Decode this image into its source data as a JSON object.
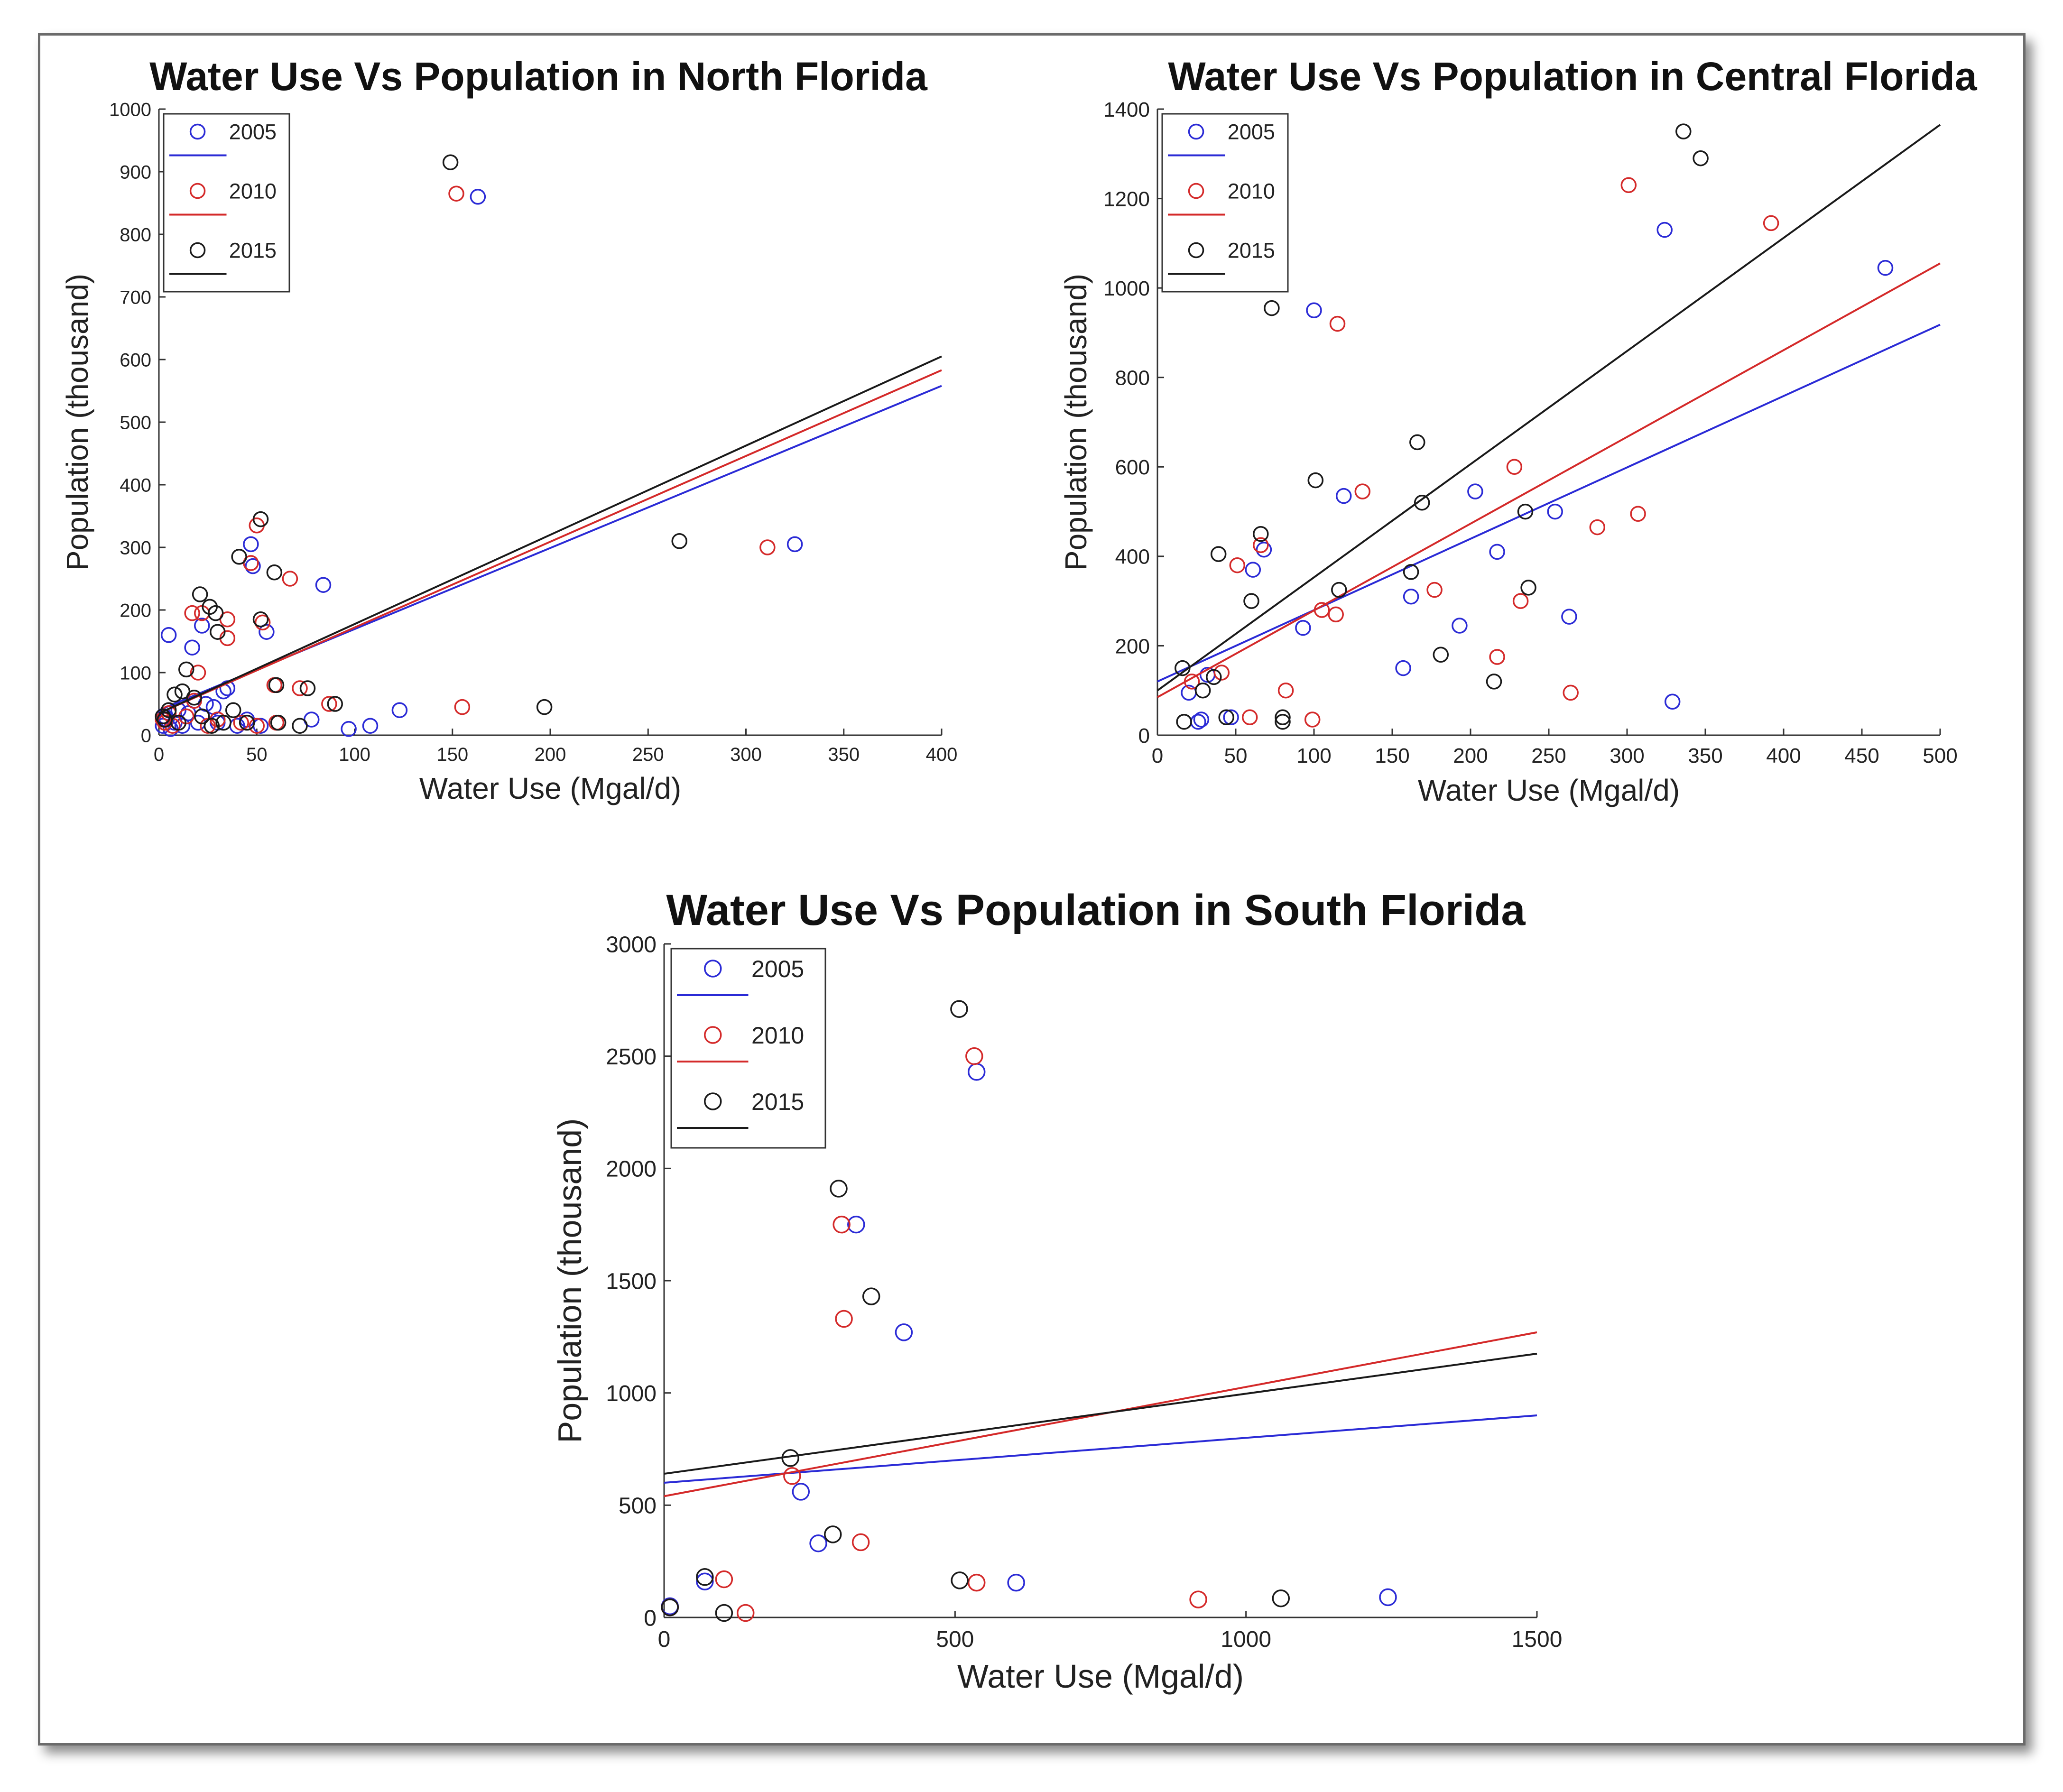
{
  "colors": {
    "2005": "#2b2bd6",
    "2010": "#d42a2a",
    "2015": "#1a1a1a"
  },
  "chart_data": [
    {
      "type": "scatter",
      "title": "Water Use Vs Population in North Florida",
      "xlabel": "Water Use (Mgal/d)",
      "ylabel": "Population (thousand)",
      "xlim": [
        0,
        400
      ],
      "ylim": [
        0,
        1000
      ],
      "xticks": [
        0,
        50,
        100,
        150,
        200,
        250,
        300,
        350,
        400
      ],
      "yticks": [
        0,
        100,
        200,
        300,
        400,
        500,
        600,
        700,
        800,
        900,
        1000
      ],
      "legend": [
        "2005",
        "2010",
        "2015"
      ],
      "series": [
        {
          "name": "2005",
          "points": [
            [
              5,
              160
            ],
            [
              17,
              140
            ],
            [
              22,
              175
            ],
            [
              47,
              305
            ],
            [
              48,
              270
            ],
            [
              55,
              165
            ],
            [
              84,
              240
            ],
            [
              163,
              860
            ],
            [
              325,
              305
            ],
            [
              123,
              40
            ],
            [
              108,
              15
            ],
            [
              97,
              10
            ],
            [
              78,
              25
            ],
            [
              35,
              75
            ],
            [
              33,
              70
            ],
            [
              28,
              45
            ],
            [
              24,
              50
            ],
            [
              20,
              20
            ],
            [
              15,
              35
            ],
            [
              12,
              15
            ],
            [
              10,
              40
            ],
            [
              8,
              20
            ],
            [
              6,
              10
            ],
            [
              4,
              25
            ],
            [
              3,
              30
            ],
            [
              2,
              15
            ],
            [
              30,
              20
            ],
            [
              40,
              15
            ],
            [
              45,
              25
            ],
            [
              52,
              15
            ]
          ],
          "fit": [
            [
              0,
              40
            ],
            [
              400,
              558
            ]
          ]
        },
        {
          "name": "2010",
          "points": [
            [
              17,
              195
            ],
            [
              22,
              195
            ],
            [
              20,
              100
            ],
            [
              35,
              185
            ],
            [
              35,
              155
            ],
            [
              47,
              275
            ],
            [
              50,
              335
            ],
            [
              53,
              180
            ],
            [
              59,
              80
            ],
            [
              67,
              250
            ],
            [
              72,
              75
            ],
            [
              87,
              50
            ],
            [
              152,
              865
            ],
            [
              155,
              45
            ],
            [
              311,
              300
            ],
            [
              60,
              20
            ],
            [
              50,
              15
            ],
            [
              42,
              20
            ],
            [
              30,
              25
            ],
            [
              25,
              15
            ],
            [
              18,
              55
            ],
            [
              14,
              30
            ],
            [
              10,
              20
            ],
            [
              7,
              15
            ],
            [
              5,
              35
            ],
            [
              3,
              20
            ],
            [
              2,
              25
            ]
          ],
          "fit": [
            [
              0,
              35
            ],
            [
              400,
              583
            ]
          ]
        },
        {
          "name": "2015",
          "points": [
            [
              14,
              105
            ],
            [
              21,
              225
            ],
            [
              26,
              205
            ],
            [
              29,
              195
            ],
            [
              41,
              285
            ],
            [
              52,
              345
            ],
            [
              52,
              185
            ],
            [
              59,
              260
            ],
            [
              60,
              80
            ],
            [
              76,
              75
            ],
            [
              90,
              50
            ],
            [
              149,
              915
            ],
            [
              197,
              45
            ],
            [
              266,
              310
            ],
            [
              72,
              15
            ],
            [
              61,
              20
            ],
            [
              45,
              20
            ],
            [
              38,
              40
            ],
            [
              33,
              20
            ],
            [
              30,
              165
            ],
            [
              27,
              15
            ],
            [
              18,
              60
            ],
            [
              12,
              70
            ],
            [
              8,
              65
            ],
            [
              5,
              40
            ],
            [
              3,
              25
            ],
            [
              2,
              30
            ],
            [
              10,
              20
            ],
            [
              22,
              30
            ]
          ],
          "fit": [
            [
              0,
              35
            ],
            [
              400,
              605
            ]
          ]
        }
      ]
    },
    {
      "type": "scatter",
      "title": "Water Use Vs Population in Central Florida",
      "xlabel": "Water Use (Mgal/d)",
      "ylabel": "Population (thousand)",
      "xlim": [
        0,
        500
      ],
      "ylim": [
        0,
        1400
      ],
      "xticks": [
        0,
        50,
        100,
        150,
        200,
        250,
        300,
        350,
        400,
        450,
        500
      ],
      "yticks": [
        0,
        200,
        400,
        600,
        800,
        1000,
        1200,
        1400
      ],
      "legend": [
        "2005",
        "2010",
        "2015"
      ],
      "series": [
        {
          "name": "2005",
          "points": [
            [
              100,
              950
            ],
            [
              119,
              535
            ],
            [
              68,
              415
            ],
            [
              61,
              370
            ],
            [
              93,
              240
            ],
            [
              162,
              310
            ],
            [
              157,
              150
            ],
            [
              193,
              245
            ],
            [
              203,
              545
            ],
            [
              217,
              410
            ],
            [
              254,
              500
            ],
            [
              263,
              265
            ],
            [
              324,
              1130
            ],
            [
              329,
              75
            ],
            [
              465,
              1045
            ],
            [
              47,
              40
            ],
            [
              32,
              135
            ],
            [
              28,
              35
            ],
            [
              26,
              30
            ],
            [
              20,
              95
            ]
          ],
          "fit": [
            [
              0,
              120
            ],
            [
              500,
              918
            ]
          ]
        },
        {
          "name": "2010",
          "points": [
            [
              115,
              920
            ],
            [
              131,
              545
            ],
            [
              51,
              380
            ],
            [
              66,
              425
            ],
            [
              41,
              140
            ],
            [
              59,
              40
            ],
            [
              82,
              100
            ],
            [
              99,
              35
            ],
            [
              105,
              280
            ],
            [
              114,
              270
            ],
            [
              177,
              325
            ],
            [
              217,
              175
            ],
            [
              228,
              600
            ],
            [
              232,
              300
            ],
            [
              264,
              95
            ],
            [
              281,
              465
            ],
            [
              301,
              1230
            ],
            [
              307,
              495
            ],
            [
              392,
              1145
            ],
            [
              22,
              120
            ]
          ],
          "fit": [
            [
              0,
              85
            ],
            [
              500,
              1055
            ]
          ]
        },
        {
          "name": "2015",
          "points": [
            [
              73,
              955
            ],
            [
              101,
              570
            ],
            [
              66,
              450
            ],
            [
              39,
              405
            ],
            [
              60,
              300
            ],
            [
              36,
              130
            ],
            [
              29,
              100
            ],
            [
              44,
              40
            ],
            [
              80,
              30
            ],
            [
              80,
              40
            ],
            [
              116,
              325
            ],
            [
              162,
              365
            ],
            [
              166,
              655
            ],
            [
              169,
              520
            ],
            [
              181,
              180
            ],
            [
              215,
              120
            ],
            [
              235,
              500
            ],
            [
              237,
              330
            ],
            [
              336,
              1350
            ],
            [
              347,
              1290
            ],
            [
              17,
              30
            ],
            [
              16,
              150
            ]
          ],
          "fit": [
            [
              0,
              100
            ],
            [
              500,
              1365
            ]
          ]
        }
      ]
    },
    {
      "type": "scatter",
      "title": "Water Use Vs Population in South Florida",
      "xlabel": "Water Use (Mgal/d)",
      "ylabel": "Population (thousand)",
      "xlim": [
        0,
        1500
      ],
      "ylim": [
        0,
        3000
      ],
      "xticks": [
        0,
        500,
        1000,
        1500
      ],
      "yticks": [
        0,
        500,
        1000,
        1500,
        2000,
        2500,
        3000
      ],
      "legend": [
        "2005",
        "2010",
        "2015"
      ],
      "series": [
        {
          "name": "2005",
          "points": [
            [
              10,
              50
            ],
            [
              70,
              160
            ],
            [
              235,
              560
            ],
            [
              265,
              330
            ],
            [
              330,
              1750
            ],
            [
              412,
              1270
            ],
            [
              537,
              2430
            ],
            [
              605,
              155
            ],
            [
              1244,
              90
            ]
          ],
          "fit": [
            [
              0,
              600
            ],
            [
              1500,
              900
            ]
          ]
        },
        {
          "name": "2010",
          "points": [
            [
              10,
              45
            ],
            [
              103,
              170
            ],
            [
              140,
              20
            ],
            [
              220,
              630
            ],
            [
              305,
              1750
            ],
            [
              309,
              1330
            ],
            [
              338,
              335
            ],
            [
              533,
              2500
            ],
            [
              537,
              155
            ],
            [
              918,
              80
            ]
          ],
          "fit": [
            [
              0,
              540
            ],
            [
              1500,
              1270
            ]
          ]
        },
        {
          "name": "2015",
          "points": [
            [
              10,
              45
            ],
            [
              70,
              180
            ],
            [
              103,
              20
            ],
            [
              217,
              710
            ],
            [
              290,
              370
            ],
            [
              300,
              1910
            ],
            [
              356,
              1430
            ],
            [
              507,
              2710
            ],
            [
              508,
              165
            ],
            [
              1060,
              85
            ]
          ],
          "fit": [
            [
              0,
              640
            ],
            [
              1500,
              1175
            ]
          ]
        }
      ]
    }
  ]
}
